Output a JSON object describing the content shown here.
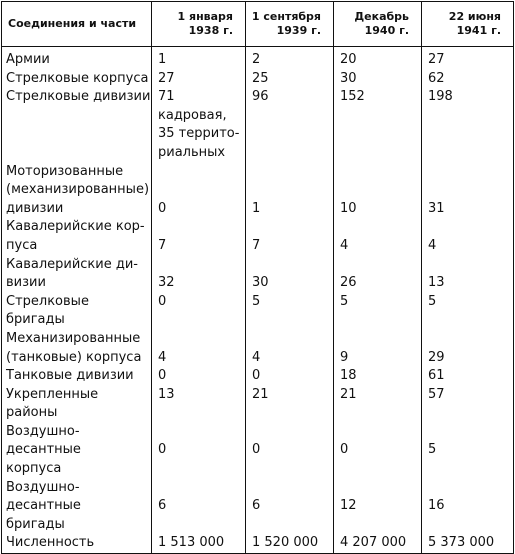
{
  "table": {
    "headers": [
      [
        "Соединения и части"
      ],
      [
        "1 января",
        "1938 г."
      ],
      [
        "1 сентября",
        "1939 г."
      ],
      [
        "Декабрь",
        "1940 г."
      ],
      [
        "22 июня",
        "1941 г."
      ]
    ],
    "rows": [
      {
        "label": [
          "Армии"
        ],
        "values": [
          "1",
          "2",
          "20",
          "27"
        ]
      },
      {
        "label": [
          "Стрелковые корпуса"
        ],
        "values": [
          " 27",
          "25",
          "30",
          "62"
        ]
      },
      {
        "label": [
          "Стрелковые дивизии"
        ],
        "values": [
          "71 кадровая,\n35 террито-\nриальных",
          "96",
          "152",
          "198"
        ]
      },
      {
        "label": [
          "Моторизованные",
          "(механизированные)",
          "дивизии"
        ],
        "values": [
          "0",
          "1",
          "10",
          "31"
        ]
      },
      {
        "label": [
          "Кавалерийские кор-",
          "пуса"
        ],
        "values": [
          "7",
          "7",
          "4",
          "4"
        ]
      },
      {
        "label": [
          "Кавалерийские ди-",
          "визии"
        ],
        "values": [
          "32",
          "30",
          "26",
          "13"
        ]
      },
      {
        "label": [
          "Стрелковые бригады"
        ],
        "values": [
          "0",
          "5",
          "5",
          "5"
        ]
      },
      {
        "label": [
          "Механизированные",
          "(танковые) корпуса"
        ],
        "values": [
          "4",
          "4",
          "9",
          "29"
        ]
      },
      {
        "label": [
          "Танковые дивизии"
        ],
        "values": [
          "0",
          "0",
          "18",
          "61"
        ]
      },
      {
        "label": [
          "Укрепленные районы"
        ],
        "values": [
          "13",
          "21",
          "21",
          "57"
        ]
      },
      {
        "label": [
          "Воздушно-десантные",
          "корпуса"
        ],
        "values": [
          "0",
          "0",
          "0",
          "5"
        ]
      },
      {
        "label": [
          "Воздушно-десантные",
          "бригады"
        ],
        "values": [
          "6",
          "6",
          "12",
          "16"
        ]
      },
      {
        "label": [
          "Численность"
        ],
        "values": [
          "1 513 000",
          "1 520 000",
          "4 207 000",
          "5 373 000"
        ]
      }
    ]
  }
}
